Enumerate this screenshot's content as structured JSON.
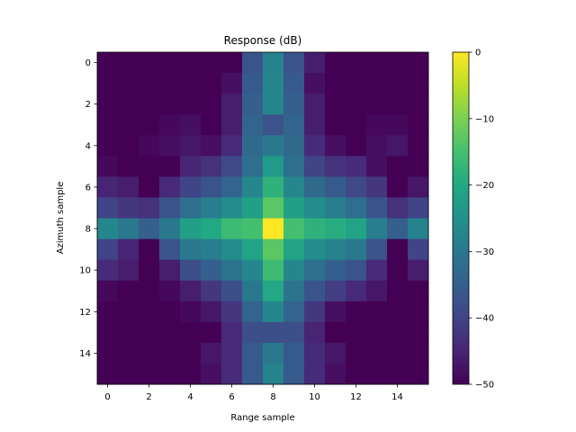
{
  "chart_data": {
    "type": "heatmap",
    "title": "Response (dB)",
    "xlabel": "Range sample",
    "ylabel": "Azimuth sample",
    "x": [
      0,
      1,
      2,
      3,
      4,
      5,
      6,
      7,
      8,
      9,
      10,
      11,
      12,
      13,
      14,
      15
    ],
    "y": [
      0,
      1,
      2,
      3,
      4,
      5,
      6,
      7,
      8,
      9,
      10,
      11,
      12,
      13,
      14,
      15
    ],
    "xlim": [
      -0.5,
      15.5
    ],
    "ylim": [
      15.5,
      -0.5
    ],
    "xticks": [
      0,
      2,
      4,
      6,
      8,
      10,
      12,
      14
    ],
    "yticks": [
      0,
      2,
      4,
      6,
      8,
      10,
      12,
      14
    ],
    "colormap": "viridis",
    "clim": [
      -50,
      0
    ],
    "colorbar_ticks": [
      0,
      -10,
      -20,
      -30,
      -40,
      -50
    ],
    "colorbar_tick_labels": [
      "0",
      "−10",
      "−20",
      "−30",
      "−40",
      "−50"
    ],
    "grid": false,
    "values": [
      [
        -50,
        -50,
        -50,
        -50,
        -50,
        -50,
        -50,
        -37,
        -28,
        -37,
        -46,
        -50,
        -50,
        -50,
        -50,
        -50
      ],
      [
        -50,
        -50,
        -50,
        -50,
        -50,
        -50,
        -48,
        -36,
        -27,
        -36,
        -48,
        -50,
        -50,
        -50,
        -50,
        -50
      ],
      [
        -50,
        -50,
        -50,
        -50,
        -50,
        -50,
        -46,
        -35,
        -27,
        -35,
        -46,
        -50,
        -50,
        -50,
        -50,
        -50
      ],
      [
        -50,
        -50,
        -50,
        -49,
        -48,
        -50,
        -46,
        -34,
        -37,
        -34,
        -46,
        -50,
        -50,
        -49,
        -49,
        -50
      ],
      [
        -50,
        -50,
        -49,
        -48,
        -47,
        -48,
        -44,
        -33,
        -30,
        -33,
        -44,
        -48,
        -50,
        -48,
        -47,
        -50
      ],
      [
        -49,
        -50,
        -50,
        -50,
        -45,
        -43,
        -39,
        -32,
        -23,
        -32,
        -40,
        -43,
        -44,
        -48,
        -50,
        -50
      ],
      [
        -45,
        -46,
        -50,
        -44,
        -40,
        -37,
        -34,
        -27,
        -18,
        -27,
        -33,
        -36,
        -39,
        -42,
        -50,
        -47
      ],
      [
        -40,
        -42,
        -43,
        -37,
        -32,
        -29,
        -26,
        -22,
        -13,
        -22,
        -26,
        -29,
        -32,
        -37,
        -43,
        -40
      ],
      [
        -27,
        -30,
        -35,
        -30,
        -22,
        -20,
        -16,
        -15,
        0,
        -15,
        -18,
        -19,
        -21,
        -29,
        -35,
        -28
      ],
      [
        -40,
        -45,
        -50,
        -37,
        -30,
        -29,
        -26,
        -21,
        -13,
        -21,
        -26,
        -28,
        -30,
        -37,
        -50,
        -40
      ],
      [
        -44,
        -46,
        -50,
        -46,
        -38,
        -35,
        -31,
        -27,
        -16,
        -27,
        -32,
        -35,
        -37,
        -44,
        -50,
        -46
      ],
      [
        -49,
        -50,
        -50,
        -49,
        -46,
        -42,
        -38,
        -30,
        -20,
        -31,
        -37,
        -41,
        -44,
        -47,
        -50,
        -50
      ],
      [
        -50,
        -50,
        -50,
        -50,
        -49,
        -47,
        -42,
        -34,
        -27,
        -34,
        -42,
        -48,
        -50,
        -50,
        -50,
        -50
      ],
      [
        -50,
        -50,
        -50,
        -50,
        -50,
        -50,
        -44,
        -38,
        -38,
        -38,
        -45,
        -50,
        -50,
        -50,
        -50,
        -50
      ],
      [
        -50,
        -50,
        -50,
        -50,
        -50,
        -47,
        -44,
        -36,
        -30,
        -36,
        -44,
        -47,
        -50,
        -50,
        -50,
        -50
      ],
      [
        -50,
        -50,
        -50,
        -50,
        -50,
        -48,
        -44,
        -36,
        -28,
        -36,
        -44,
        -48,
        -50,
        -50,
        -50,
        -50
      ]
    ]
  }
}
